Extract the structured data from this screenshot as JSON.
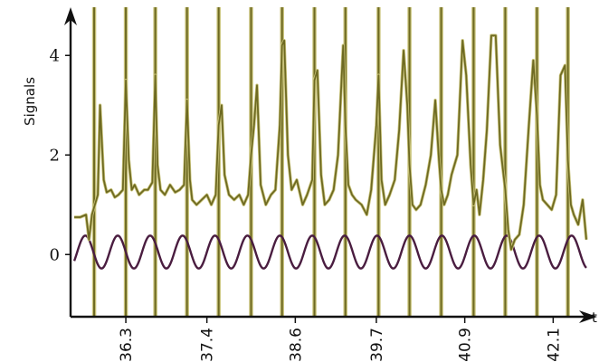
{
  "chart_data": {
    "type": "line",
    "title": "",
    "xlabel": "t",
    "ylabel": "Signals",
    "xlim": [
      35.55,
      42.55
    ],
    "ylim": [
      -1.25,
      4.75
    ],
    "x_ticks": [
      {
        "value": 36.3,
        "label": "36.3"
      },
      {
        "value": 37.4,
        "label": "37.4"
      },
      {
        "value": 38.6,
        "label": "38.6"
      },
      {
        "value": 39.7,
        "label": "39.7"
      },
      {
        "value": 40.9,
        "label": "40.9"
      },
      {
        "value": 42.1,
        "label": "42.1"
      }
    ],
    "y_ticks": [
      {
        "value": 0,
        "label": "0"
      },
      {
        "value": 2,
        "label": "2"
      },
      {
        "value": 4,
        "label": "4"
      }
    ],
    "grid": false,
    "legend": "none",
    "colors": {
      "spikes": "#6e6a22",
      "spikes_fill": "#c9c37a",
      "sine": "#4a1d40",
      "axis": "#111111"
    },
    "events": [
      35.87,
      36.3,
      36.7,
      37.13,
      37.56,
      38.0,
      38.42,
      38.86,
      39.28,
      39.73,
      40.15,
      40.58,
      41.02,
      41.45,
      41.88,
      42.3
    ],
    "series": [
      {
        "kind": "signal",
        "x": [
          35.6,
          35.68,
          35.76,
          35.8,
          35.84,
          35.88,
          35.92,
          35.95,
          36.0,
          36.04,
          36.1,
          36.15,
          36.2,
          36.26,
          36.3,
          36.34,
          36.38,
          36.42,
          36.48,
          36.55,
          36.6,
          36.66,
          36.7,
          36.73,
          36.77,
          36.83,
          36.9,
          36.97,
          37.03,
          37.09,
          37.13,
          37.17,
          37.2,
          37.26,
          37.33,
          37.4,
          37.46,
          37.52,
          37.56,
          37.6,
          37.64,
          37.7,
          37.77,
          37.84,
          37.9,
          37.96,
          38.0,
          38.04,
          38.08,
          38.13,
          38.2,
          38.27,
          38.33,
          38.39,
          38.42,
          38.45,
          38.5,
          38.55,
          38.62,
          38.7,
          38.76,
          38.83,
          38.86,
          38.9,
          38.95,
          39.0,
          39.06,
          39.12,
          39.18,
          39.25,
          39.28,
          39.32,
          39.37,
          39.42,
          39.5,
          39.57,
          39.63,
          39.7,
          39.73,
          39.77,
          39.82,
          39.88,
          39.95,
          40.01,
          40.07,
          40.12,
          40.15,
          40.19,
          40.24,
          40.3,
          40.37,
          40.44,
          40.5,
          40.55,
          40.58,
          40.62,
          40.67,
          40.72,
          40.8,
          40.87,
          40.92,
          40.98,
          41.02,
          41.06,
          41.1,
          41.15,
          41.2,
          41.26,
          41.32,
          41.38,
          41.45,
          41.49,
          41.53,
          41.58,
          41.64,
          41.7,
          41.77,
          41.83,
          41.88,
          41.92,
          41.96,
          42.02,
          42.08,
          42.14,
          42.2,
          42.26,
          42.3,
          42.34,
          42.38,
          42.44,
          42.5,
          42.55
        ],
        "y": [
          0.75,
          0.75,
          0.8,
          0.3,
          0.8,
          1.0,
          1.2,
          3.0,
          1.5,
          1.25,
          1.3,
          1.15,
          1.2,
          1.3,
          3.5,
          1.9,
          1.3,
          1.4,
          1.2,
          1.3,
          1.3,
          1.45,
          3.6,
          1.8,
          1.3,
          1.2,
          1.4,
          1.25,
          1.3,
          1.4,
          3.1,
          1.5,
          1.1,
          1.0,
          1.1,
          1.2,
          1.0,
          1.2,
          2.6,
          3.0,
          1.6,
          1.2,
          1.1,
          1.2,
          1.0,
          1.2,
          2.0,
          2.6,
          3.4,
          1.4,
          1.0,
          1.2,
          1.3,
          2.6,
          4.2,
          4.3,
          2.0,
          1.3,
          1.5,
          1.0,
          1.2,
          1.5,
          3.5,
          3.7,
          1.6,
          1.0,
          1.1,
          1.3,
          2.0,
          4.2,
          2.6,
          1.4,
          1.2,
          1.1,
          1.0,
          0.8,
          1.3,
          2.6,
          3.6,
          1.5,
          1.0,
          1.2,
          1.5,
          2.5,
          4.1,
          3.0,
          1.8,
          1.0,
          0.9,
          1.0,
          1.4,
          2.0,
          3.1,
          1.9,
          1.3,
          1.0,
          1.2,
          1.6,
          2.0,
          4.3,
          3.6,
          1.8,
          1.0,
          1.3,
          0.8,
          1.5,
          2.5,
          4.4,
          4.4,
          2.2,
          1.3,
          0.5,
          0.1,
          0.3,
          0.4,
          1.0,
          2.6,
          3.9,
          2.8,
          1.4,
          1.1,
          1.0,
          0.9,
          1.2,
          3.6,
          3.8,
          1.9,
          1.0,
          0.8,
          0.6,
          1.1,
          0.3
        ]
      },
      {
        "kind": "sine",
        "amplitude": 0.33,
        "offset": 0.05,
        "period": 0.44,
        "phase": 35.64,
        "x_start": 35.6,
        "x_end": 42.55
      }
    ]
  }
}
